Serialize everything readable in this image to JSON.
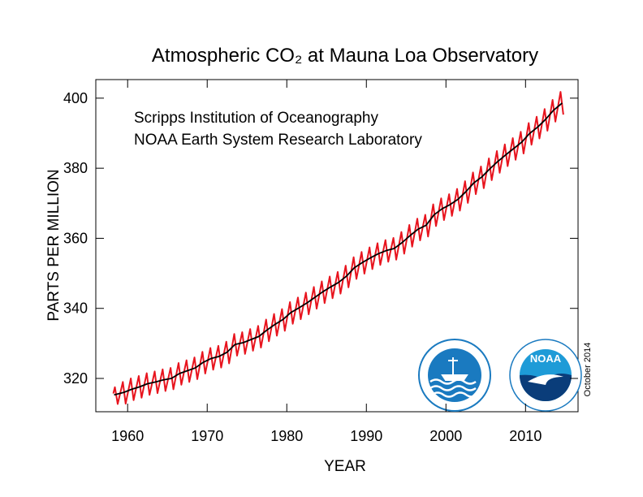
{
  "chart_data": {
    "type": "line",
    "title": "Atmospheric CO₂ at Mauna Loa Observatory",
    "xlabel": "YEAR",
    "ylabel": "PARTS PER MILLION",
    "annotations": [
      "Scripps Institution of Oceanography",
      "NOAA Earth System Research Laboratory"
    ],
    "date_note": "October 2014",
    "logo_text": "NOAA",
    "xlim": [
      1956,
      2016.6
    ],
    "ylim": [
      310.5,
      405.3
    ],
    "xticks": [
      1960,
      1970,
      1980,
      1990,
      2000,
      2010
    ],
    "yticks": [
      320,
      340,
      360,
      380,
      400
    ],
    "series": [
      {
        "color": "#e8141e",
        "x": [
          1958.2,
          1958.4,
          1958.75,
          1959.4,
          1959.75,
          1960.4,
          1960.75,
          1961.4,
          1961.75,
          1962.4,
          1962.75,
          1963.4,
          1963.75,
          1964.4,
          1964.75,
          1965.4,
          1965.75,
          1966.4,
          1966.75,
          1967.4,
          1967.75,
          1968.4,
          1968.75,
          1969.4,
          1969.75,
          1970.4,
          1970.75,
          1971.4,
          1971.75,
          1972.4,
          1972.75,
          1973.4,
          1973.75,
          1974.4,
          1974.75,
          1975.4,
          1975.75,
          1976.4,
          1976.75,
          1977.4,
          1977.75,
          1978.4,
          1978.75,
          1979.4,
          1979.75,
          1980.4,
          1980.75,
          1981.4,
          1981.75,
          1982.4,
          1982.75,
          1983.4,
          1983.75,
          1984.4,
          1984.75,
          1985.4,
          1985.75,
          1986.4,
          1986.75,
          1987.4,
          1987.75,
          1988.4,
          1988.75,
          1989.4,
          1989.75,
          1990.4,
          1990.75,
          1991.4,
          1991.75,
          1992.4,
          1992.75,
          1993.4,
          1993.75,
          1994.4,
          1994.75,
          1995.4,
          1995.75,
          1996.4,
          1996.75,
          1997.4,
          1997.75,
          1998.4,
          1998.75,
          1999.4,
          1999.75,
          2000.4,
          2000.75,
          2001.4,
          2001.75,
          2002.4,
          2002.75,
          2003.4,
          2003.75,
          2004.4,
          2004.75,
          2005.4,
          2005.75,
          2006.4,
          2006.75,
          2007.4,
          2007.75,
          2008.4,
          2008.75,
          2009.4,
          2009.75,
          2010.4,
          2010.75,
          2011.4,
          2011.75,
          2012.4,
          2012.75,
          2013.4,
          2013.75,
          2014.4,
          2014.75
        ],
        "values": [
          315.7,
          317.5,
          312.7,
          319.0,
          312.8,
          320.0,
          313.8,
          320.7,
          314.5,
          321.5,
          315.3,
          322.0,
          315.8,
          322.6,
          316.4,
          323.0,
          316.9,
          324.4,
          318.2,
          325.2,
          319.0,
          326.0,
          319.8,
          327.6,
          321.4,
          328.7,
          322.5,
          329.3,
          323.1,
          330.5,
          324.3,
          332.7,
          326.5,
          333.2,
          327.0,
          334.1,
          327.9,
          335.0,
          328.8,
          336.8,
          330.6,
          338.4,
          332.2,
          339.8,
          333.6,
          341.8,
          335.6,
          343.1,
          336.9,
          344.5,
          338.3,
          346.1,
          339.9,
          347.7,
          341.5,
          349.1,
          342.9,
          350.4,
          344.2,
          352.2,
          346.0,
          354.6,
          348.4,
          356.1,
          349.9,
          357.4,
          351.2,
          358.6,
          352.4,
          359.5,
          353.3,
          360.1,
          353.9,
          361.8,
          355.6,
          363.8,
          357.6,
          365.6,
          359.4,
          366.7,
          360.5,
          369.7,
          363.5,
          371.4,
          365.2,
          372.6,
          366.4,
          374.1,
          367.9,
          376.3,
          370.1,
          378.8,
          372.6,
          380.5,
          374.3,
          382.8,
          376.6,
          384.9,
          378.7,
          386.8,
          380.6,
          388.6,
          382.4,
          390.4,
          384.2,
          392.9,
          386.7,
          394.7,
          388.5,
          396.9,
          390.7,
          399.5,
          393.3,
          401.8,
          395.3
        ]
      },
      {
        "color": "#000000",
        "x": [
          1958.3,
          1959.5,
          1960.5,
          1961.5,
          1962.5,
          1963.5,
          1964.5,
          1965.5,
          1966.5,
          1967.5,
          1968.5,
          1969.5,
          1970.5,
          1971.5,
          1972.5,
          1973.5,
          1974.5,
          1975.5,
          1976.5,
          1977.5,
          1978.5,
          1979.5,
          1980.5,
          1981.5,
          1982.5,
          1983.5,
          1984.5,
          1985.5,
          1986.5,
          1987.5,
          1988.5,
          1989.5,
          1990.5,
          1991.5,
          1992.5,
          1993.5,
          1994.5,
          1995.5,
          1996.5,
          1997.5,
          1998.5,
          1999.5,
          2000.5,
          2001.5,
          2002.5,
          2003.5,
          2004.5,
          2005.5,
          2006.5,
          2007.5,
          2008.5,
          2009.5,
          2010.5,
          2011.5,
          2012.5,
          2013.5,
          2014.6
        ],
        "values": [
          315.3,
          316.0,
          316.9,
          317.6,
          318.5,
          319.0,
          319.6,
          320.0,
          321.4,
          322.2,
          323.0,
          324.6,
          325.7,
          326.3,
          327.5,
          329.7,
          330.2,
          331.1,
          332.0,
          333.8,
          335.4,
          336.8,
          338.8,
          340.1,
          341.5,
          343.1,
          344.7,
          346.1,
          347.4,
          349.2,
          351.6,
          353.1,
          354.4,
          355.6,
          356.5,
          357.1,
          358.8,
          360.8,
          362.6,
          363.7,
          366.7,
          368.4,
          369.6,
          371.1,
          373.3,
          375.8,
          377.5,
          379.8,
          381.9,
          383.8,
          385.6,
          387.4,
          389.9,
          391.7,
          393.9,
          396.5,
          398.6
        ]
      }
    ]
  }
}
